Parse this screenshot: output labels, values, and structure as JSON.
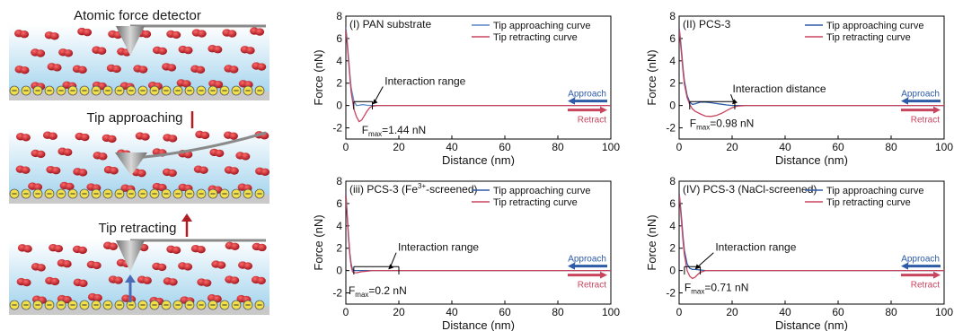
{
  "schematic": {
    "panel_titles": [
      "Atomic force detector",
      "Tip approaching",
      "Tip retracting"
    ],
    "colors": {
      "water": "#bfe3f3",
      "molecule": "#c8202a",
      "tip": "#8a8a8a",
      "arrow": "#b01e24",
      "base": "#c9c9c9",
      "charge": "#f1e04a",
      "blue_arrow": "#4a6bb5"
    }
  },
  "chart_data": [
    {
      "type": "line",
      "title": "(I) PAN substrate",
      "xlabel": "Distance (nm)",
      "ylabel": "Force (nN)",
      "xlim": [
        0,
        100
      ],
      "ylim": [
        -3,
        8
      ],
      "xticks": [
        0,
        20,
        40,
        60,
        80,
        100
      ],
      "yticks": [
        -2,
        0,
        2,
        4,
        6,
        8
      ],
      "series": [
        {
          "name": "Tip approaching curve",
          "color": "#5a86c8",
          "x": [
            0,
            0.5,
            1,
            1.5,
            2,
            3,
            4,
            5,
            6,
            7,
            8,
            10,
            12,
            15,
            20,
            30,
            50,
            100
          ],
          "y": [
            7.0,
            5.8,
            4.3,
            2.9,
            1.6,
            0.4,
            0.0,
            0.02,
            0.08,
            0.06,
            0.02,
            0.0,
            0.0,
            0.0,
            0.0,
            0.0,
            0.0,
            0.0
          ]
        },
        {
          "name": "Tip retracting curve",
          "color": "#c9455e",
          "x": [
            0,
            0.5,
            1,
            1.5,
            2,
            3,
            4,
            5,
            6,
            7,
            8,
            9,
            10,
            12,
            15,
            20,
            30,
            50,
            100
          ],
          "y": [
            6.8,
            5.5,
            4.0,
            2.6,
            1.2,
            -0.3,
            -1.0,
            -1.44,
            -1.3,
            -0.9,
            -0.5,
            -0.2,
            -0.05,
            0.0,
            0.0,
            0.0,
            0.0,
            0.0,
            0.0
          ]
        }
      ],
      "annotation": {
        "text": "Interaction range",
        "at": [
          10,
          0.1
        ],
        "text_at": [
          14,
          1.7
        ]
      },
      "bracket": [
        3,
        10
      ],
      "fmax": {
        "prefix": "F",
        "sub": "max",
        "value": "=1.44 nN",
        "at": [
          6,
          -2.2
        ]
      },
      "approach_label": "Approach",
      "retract_label": "Retract"
    },
    {
      "type": "line",
      "title": "(II) PCS-3",
      "xlabel": "Distance (nm)",
      "ylabel": "Force (nN)",
      "xlim": [
        0,
        100
      ],
      "ylim": [
        -3,
        8
      ],
      "xticks": [
        0,
        20,
        40,
        60,
        80,
        100
      ],
      "yticks": [
        -2,
        0,
        2,
        4,
        6,
        8
      ],
      "series": [
        {
          "name": "Tip approaching curve",
          "color": "#2d5ba8",
          "x": [
            0,
            0.5,
            1,
            1.5,
            2,
            3,
            4,
            5,
            6,
            8,
            10,
            12,
            15,
            18,
            20,
            25,
            50,
            100
          ],
          "y": [
            7.0,
            5.9,
            4.6,
            3.3,
            2.2,
            0.9,
            0.3,
            0.1,
            0.15,
            0.3,
            0.3,
            0.25,
            0.15,
            0.05,
            0.0,
            0.0,
            0.0,
            0.0
          ]
        },
        {
          "name": "Tip retracting curve",
          "color": "#c9455e",
          "x": [
            0,
            0.5,
            1,
            1.5,
            2,
            3,
            4,
            5,
            6,
            8,
            10,
            12,
            14,
            16,
            18,
            20,
            22,
            25,
            50,
            100
          ],
          "y": [
            6.8,
            5.6,
            4.3,
            3.0,
            1.9,
            0.7,
            0.1,
            -0.3,
            -0.5,
            -0.75,
            -0.95,
            -0.98,
            -0.9,
            -0.7,
            -0.45,
            -0.2,
            -0.05,
            0.0,
            0.0,
            0.0
          ]
        }
      ],
      "annotation": {
        "text": "Interaction distance",
        "at": [
          20,
          0.1
        ],
        "text_at": [
          19.5,
          1.0
        ]
      },
      "bracket": [
        4,
        21
      ],
      "fmax": {
        "prefix": "F",
        "sub": "max",
        "value": "=0.98 nN",
        "at": [
          4,
          -1.6
        ]
      },
      "approach_label": "Approach",
      "retract_label": "Retract"
    },
    {
      "type": "line",
      "title": "(iii) PCS-3 (Fe",
      "title_sup": "3+",
      "title_tail": "-screened)",
      "xlabel": "Distance (nm)",
      "ylabel": "Force (nN)",
      "xlim": [
        0,
        100
      ],
      "ylim": [
        -3,
        8
      ],
      "xticks": [
        0,
        20,
        40,
        60,
        80,
        100
      ],
      "yticks": [
        -2,
        0,
        2,
        4,
        6,
        8
      ],
      "series": [
        {
          "name": "Tip approaching curve",
          "color": "#2d5ba8",
          "x": [
            0,
            0.5,
            1,
            1.5,
            2,
            2.5,
            3,
            4,
            5,
            10,
            20,
            50,
            100
          ],
          "y": [
            7.0,
            5.0,
            3.1,
            1.6,
            0.6,
            0.1,
            0.0,
            0.0,
            0.0,
            0.0,
            0.0,
            0.0,
            0.0
          ]
        },
        {
          "name": "Tip retracting curve",
          "color": "#c9455e",
          "x": [
            0,
            0.5,
            1,
            1.5,
            2,
            2.5,
            3,
            4,
            5,
            6,
            8,
            10,
            20,
            50,
            100
          ],
          "y": [
            6.8,
            4.8,
            2.9,
            1.4,
            0.4,
            -0.1,
            -0.18,
            -0.2,
            -0.15,
            -0.1,
            -0.05,
            0.0,
            0.0,
            0.0,
            0.0
          ]
        }
      ],
      "annotation": {
        "text": "Interaction range",
        "at": [
          16,
          0.1
        ],
        "text_at": [
          19,
          1.6
        ]
      },
      "bracket": [
        3,
        20
      ],
      "fmax": {
        "prefix": "F",
        "sub": "max",
        "value": "=0.2 nN",
        "at": [
          1,
          -1.8
        ]
      },
      "approach_label": "Approach",
      "retract_label": "Retract"
    },
    {
      "type": "line",
      "title": "(IV) PCS-3 (NaCl-screened)",
      "xlabel": "Distance (nm)",
      "ylabel": "Force (nN)",
      "xlim": [
        0,
        100
      ],
      "ylim": [
        -3,
        8
      ],
      "xticks": [
        0,
        20,
        40,
        60,
        80,
        100
      ],
      "yticks": [
        -2,
        0,
        2,
        4,
        6,
        8
      ],
      "series": [
        {
          "name": "Tip approaching curve",
          "color": "#2d5ba8",
          "x": [
            0,
            0.5,
            1,
            1.5,
            2,
            3,
            4,
            5,
            6,
            8,
            10,
            15,
            20,
            50,
            100
          ],
          "y": [
            7.0,
            5.8,
            4.4,
            3.0,
            1.8,
            0.6,
            0.2,
            0.1,
            0.1,
            0.05,
            0.0,
            0.0,
            0.0,
            0.0,
            0.0
          ]
        },
        {
          "name": "Tip retracting curve",
          "color": "#c9455e",
          "x": [
            0,
            0.5,
            1,
            1.5,
            2,
            3,
            4,
            5,
            6,
            7,
            8,
            10,
            15,
            20,
            50,
            100
          ],
          "y": [
            6.8,
            5.5,
            4.0,
            2.6,
            1.4,
            0.0,
            -0.5,
            -0.71,
            -0.6,
            -0.35,
            -0.15,
            0.0,
            0.0,
            0.0,
            0.0,
            0.0
          ]
        }
      ],
      "annotation": {
        "text": "Interaction range",
        "at": [
          6,
          0.1
        ],
        "text_at": [
          13,
          1.6
        ]
      },
      "bracket": [
        2,
        8
      ],
      "fmax": {
        "prefix": "F",
        "sub": "max",
        "value": "=0.71 nN",
        "at": [
          2,
          -1.5
        ]
      },
      "approach_label": "Approach",
      "retract_label": "Retract"
    }
  ]
}
